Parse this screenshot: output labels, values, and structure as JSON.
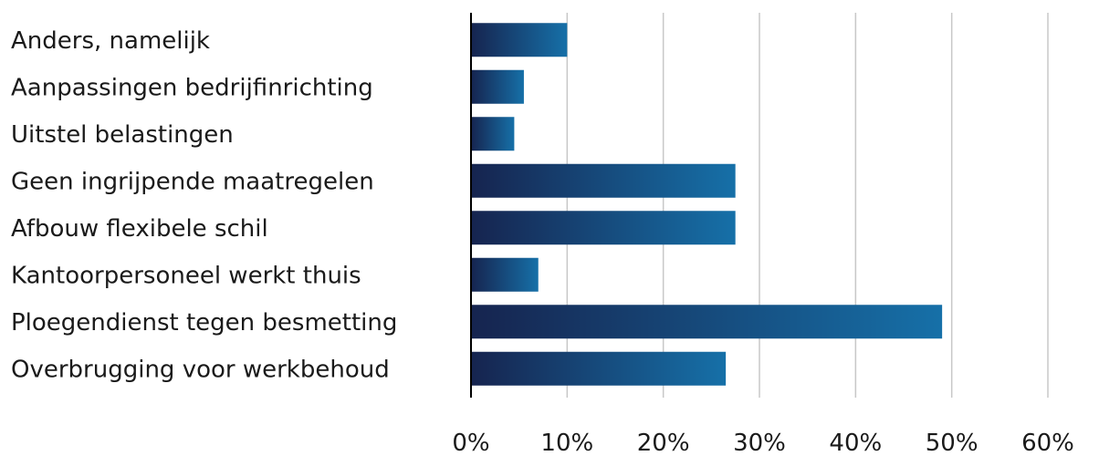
{
  "chart_data": {
    "type": "bar",
    "orientation": "horizontal",
    "categories": [
      "Anders, namelijk",
      "Aanpassingen bedrijfinrichting",
      "Uitstel belastingen",
      "Geen ingrijpende maatregelen",
      "Afbouw flexibele schil",
      "Kantoorpersoneel werkt thuis",
      "Ploegendienst tegen besmetting",
      "Overbrugging voor werkbehoud"
    ],
    "values": [
      10,
      5.5,
      4.5,
      27.5,
      27.5,
      7,
      49,
      26.5
    ],
    "xlim": [
      0,
      60
    ],
    "xticks": [
      0,
      10,
      20,
      30,
      40,
      50,
      60
    ],
    "xtick_labels": [
      "0%",
      "10%",
      "20%",
      "30%",
      "40%",
      "50%",
      "60%"
    ],
    "grid": "vertical",
    "colors": {
      "bar_start": "#16244f",
      "bar_end": "#1670a8",
      "gridline": "#c8c8c8",
      "axis": "#000000"
    }
  }
}
